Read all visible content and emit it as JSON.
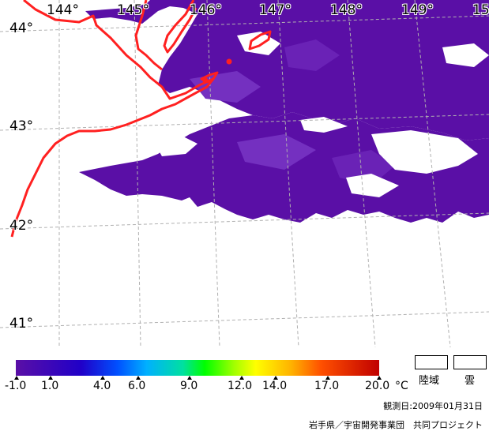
{
  "map": {
    "lon_labels": [
      "144°",
      "145°",
      "146°",
      "147°",
      "148°",
      "149°",
      "15"
    ],
    "lat_labels": [
      "44°",
      "43°",
      "42°",
      "41°"
    ],
    "colors": {
      "sst_base": "#5a0fa6",
      "sst_light": "#7430c0",
      "coast": "#ff2020",
      "grid": "#b0b0b0",
      "no_data": "#ffffff"
    }
  },
  "legend": {
    "ticks": [
      "-1.0",
      "1.0",
      "4.0",
      "6.0",
      "9.0",
      "12.0",
      "14.0",
      "17.0",
      "20.0"
    ],
    "unit": "°C",
    "key_land": "陸域",
    "key_cloud": "雲",
    "date": "観測日:2009年01月31日",
    "credit": "岩手県／宇宙開発事業団　共同プロジェクト"
  }
}
